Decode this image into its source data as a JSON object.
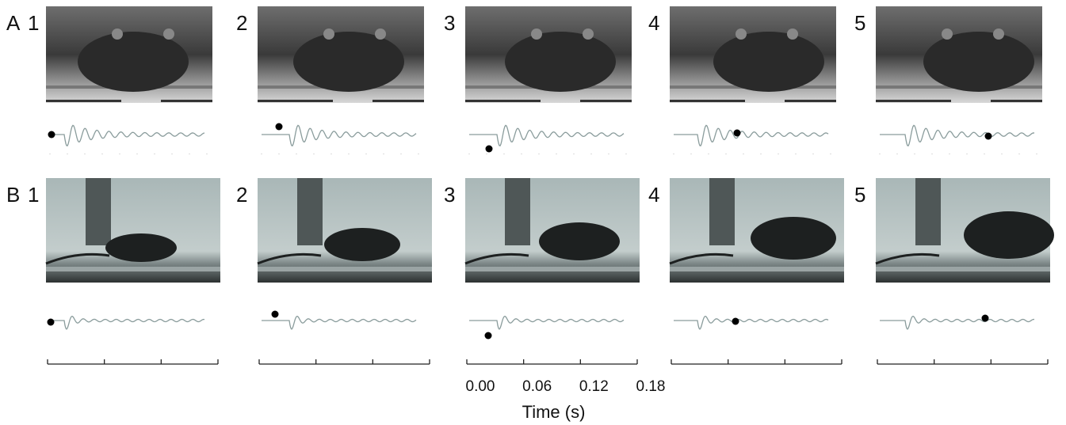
{
  "rows": [
    {
      "label": "A",
      "frames": [
        "1",
        "2",
        "3",
        "4",
        "5"
      ]
    },
    {
      "label": "B",
      "frames": [
        "1",
        "2",
        "3",
        "4",
        "5"
      ]
    }
  ],
  "time_axis": {
    "xlim": [
      0,
      0.18
    ],
    "xticks": [
      {
        "value": 0,
        "label": "0.00"
      },
      {
        "value": 0.06,
        "label": "0.06"
      },
      {
        "value": 0.12,
        "label": "0.12"
      },
      {
        "value": 0.18,
        "label": "0.18"
      }
    ],
    "xlabel": "Time (s)"
  }
}
